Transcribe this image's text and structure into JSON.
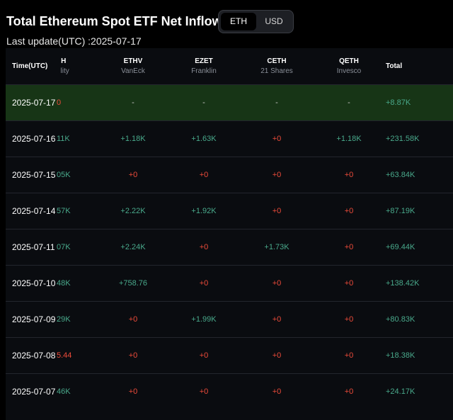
{
  "header": {
    "title": "Total Ethereum Spot ETF Net Inflow ETH",
    "toggle": {
      "eth_label": "ETH",
      "usd_label": "USD",
      "selected": "ETH"
    },
    "last_update": "Last update(UTC) :2025-07-17"
  },
  "colors": {
    "positive": "#49a98b",
    "negative": "#ee4b3a",
    "highlight_row": "#173516"
  },
  "table": {
    "columns": {
      "time": "Time(UTC)",
      "fid": {
        "code": "TH",
        "issuer": "elity"
      },
      "ethv": {
        "code": "ETHV",
        "issuer": "VanEck"
      },
      "ezet": {
        "code": "EZET",
        "issuer": "Franklin"
      },
      "ceth": {
        "code": "CETH",
        "issuer": "21 Shares"
      },
      "qeth": {
        "code": "QETH",
        "issuer": "Invesco"
      },
      "total": "Total"
    },
    "rows": [
      {
        "date": "2025-07-17",
        "fid": "0",
        "ethv": "-",
        "ezet": "-",
        "ceth": "-",
        "qeth": "-",
        "total": "+8.87K"
      },
      {
        "date": "2025-07-16",
        "fid": "11K",
        "ethv": "+1.18K",
        "ezet": "+1.63K",
        "ceth": "+0",
        "qeth": "+1.18K",
        "total": "+231.58K"
      },
      {
        "date": "2025-07-15",
        "fid": "05K",
        "ethv": "+0",
        "ezet": "+0",
        "ceth": "+0",
        "qeth": "+0",
        "total": "+63.84K"
      },
      {
        "date": "2025-07-14",
        "fid": "57K",
        "ethv": "+2.22K",
        "ezet": "+1.92K",
        "ceth": "+0",
        "qeth": "+0",
        "total": "+87.19K"
      },
      {
        "date": "2025-07-11",
        "fid": "07K",
        "ethv": "+2.24K",
        "ezet": "+0",
        "ceth": "+1.73K",
        "qeth": "+0",
        "total": "+69.44K"
      },
      {
        "date": "2025-07-10",
        "fid": "48K",
        "ethv": "+758.76",
        "ezet": "+0",
        "ceth": "+0",
        "qeth": "+0",
        "total": "+138.42K"
      },
      {
        "date": "2025-07-09",
        "fid": "29K",
        "ethv": "+0",
        "ezet": "+1.99K",
        "ceth": "+0",
        "qeth": "+0",
        "total": "+80.83K"
      },
      {
        "date": "2025-07-08",
        "fid": "5.44",
        "ethv": "+0",
        "ezet": "+0",
        "ceth": "+0",
        "qeth": "+0",
        "total": "+18.38K"
      },
      {
        "date": "2025-07-07",
        "fid": "46K",
        "ethv": "+0",
        "ezet": "+0",
        "ceth": "+0",
        "qeth": "+0",
        "total": "+24.17K"
      }
    ],
    "row_tones": [
      {
        "fid": "neg",
        "ethv": "dash",
        "ezet": "dash",
        "ceth": "dash",
        "qeth": "dash",
        "total": "pos"
      },
      {
        "fid": "pos",
        "ethv": "pos",
        "ezet": "pos",
        "ceth": "neg",
        "qeth": "pos",
        "total": "pos"
      },
      {
        "fid": "pos",
        "ethv": "neg",
        "ezet": "neg",
        "ceth": "neg",
        "qeth": "neg",
        "total": "pos"
      },
      {
        "fid": "pos",
        "ethv": "pos",
        "ezet": "pos",
        "ceth": "neg",
        "qeth": "neg",
        "total": "pos"
      },
      {
        "fid": "pos",
        "ethv": "pos",
        "ezet": "neg",
        "ceth": "pos",
        "qeth": "neg",
        "total": "pos"
      },
      {
        "fid": "pos",
        "ethv": "pos",
        "ezet": "neg",
        "ceth": "neg",
        "qeth": "neg",
        "total": "pos"
      },
      {
        "fid": "pos",
        "ethv": "neg",
        "ezet": "pos",
        "ceth": "neg",
        "qeth": "neg",
        "total": "pos"
      },
      {
        "fid": "neg",
        "ethv": "neg",
        "ezet": "neg",
        "ceth": "neg",
        "qeth": "neg",
        "total": "pos"
      },
      {
        "fid": "pos",
        "ethv": "neg",
        "ezet": "neg",
        "ceth": "neg",
        "qeth": "neg",
        "total": "pos"
      }
    ],
    "highlighted_row": "2025-07-17"
  }
}
